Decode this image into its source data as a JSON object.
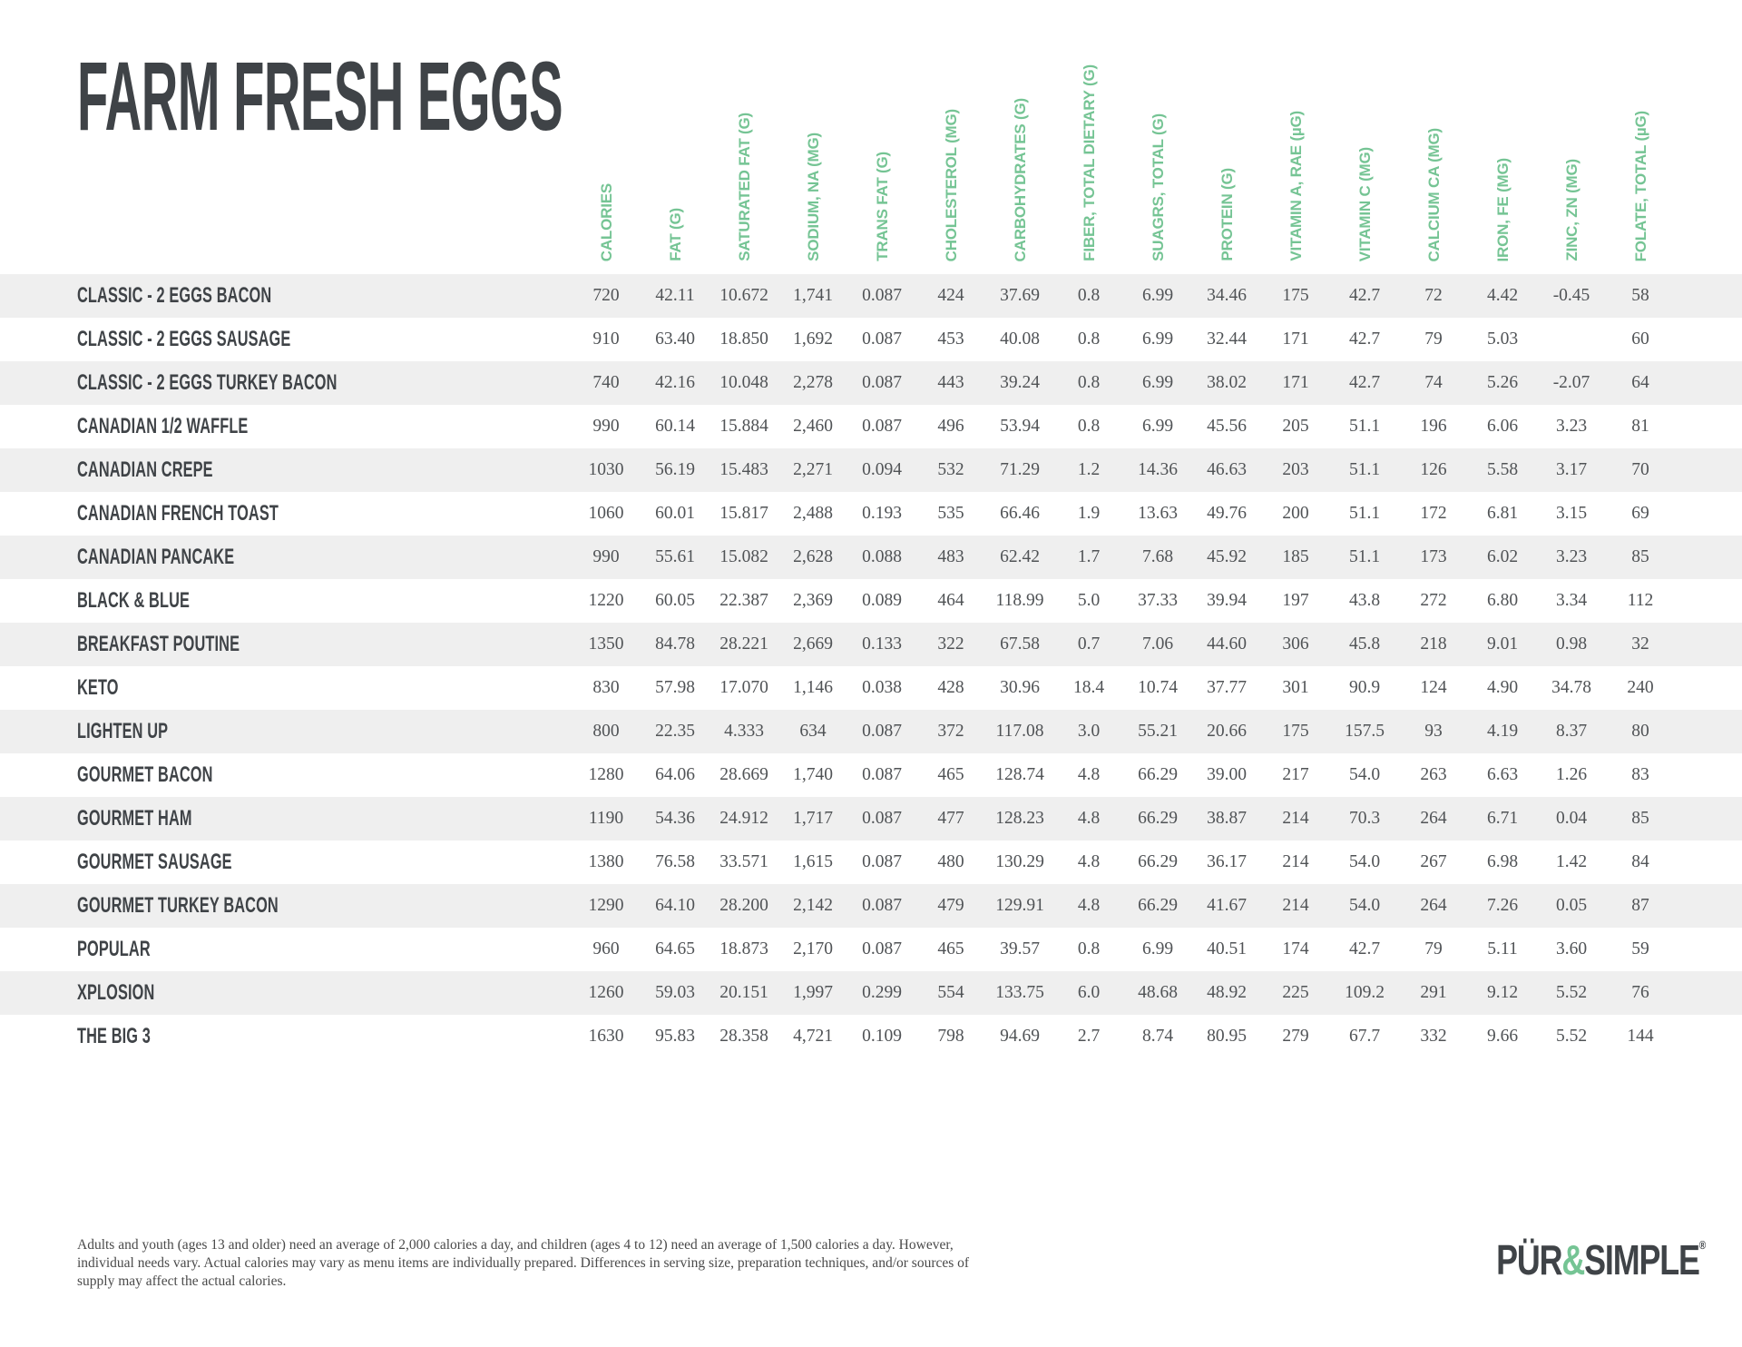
{
  "page": {
    "title": "FARM FRESH EGGS"
  },
  "table": {
    "columns": [
      "CALORIES",
      "FAT (G)",
      "SATURATED FAT (G)",
      "SODIUM, NA (MG)",
      "TRANS FAT (G)",
      "CHOLESTEROL (MG)",
      "CARBOHYDRATES (G)",
      "FIBER, TOTAL DIETARY (G)",
      "SUAGRS, TOTAL (G)",
      "PROTEIN (G)",
      "VITAMIN A, RAE (µG)",
      "VITAMIN C (MG)",
      "CALCIUM CA (MG)",
      "IRON, FE (MG)",
      "ZINC, ZN (MG)",
      "FOLATE, TOTAL (µG)"
    ],
    "rows": [
      {
        "name": "CLASSIC - 2 EGGS BACON",
        "values": [
          "720",
          "42.11",
          "10.672",
          "1,741",
          "0.087",
          "424",
          "37.69",
          "0.8",
          "6.99",
          "34.46",
          "175",
          "42.7",
          "72",
          "4.42",
          "-0.45",
          "58"
        ]
      },
      {
        "name": "CLASSIC - 2 EGGS SAUSAGE",
        "values": [
          "910",
          "63.40",
          "18.850",
          "1,692",
          "0.087",
          "453",
          "40.08",
          "0.8",
          "6.99",
          "32.44",
          "171",
          "42.7",
          "79",
          "5.03",
          "",
          "60"
        ]
      },
      {
        "name": "CLASSIC - 2 EGGS TURKEY BACON",
        "values": [
          "740",
          "42.16",
          "10.048",
          "2,278",
          "0.087",
          "443",
          "39.24",
          "0.8",
          "6.99",
          "38.02",
          "171",
          "42.7",
          "74",
          "5.26",
          "-2.07",
          "64"
        ]
      },
      {
        "name": "CANADIAN 1/2 WAFFLE",
        "values": [
          "990",
          "60.14",
          "15.884",
          "2,460",
          "0.087",
          "496",
          "53.94",
          "0.8",
          "6.99",
          "45.56",
          "205",
          "51.1",
          "196",
          "6.06",
          "3.23",
          "81"
        ]
      },
      {
        "name": "CANADIAN CREPE",
        "values": [
          "1030",
          "56.19",
          "15.483",
          "2,271",
          "0.094",
          "532",
          "71.29",
          "1.2",
          "14.36",
          "46.63",
          "203",
          "51.1",
          "126",
          "5.58",
          "3.17",
          "70"
        ]
      },
      {
        "name": "CANADIAN FRENCH TOAST",
        "values": [
          "1060",
          "60.01",
          "15.817",
          "2,488",
          "0.193",
          "535",
          "66.46",
          "1.9",
          "13.63",
          "49.76",
          "200",
          "51.1",
          "172",
          "6.81",
          "3.15",
          "69"
        ]
      },
      {
        "name": "CANADIAN PANCAKE",
        "values": [
          "990",
          "55.61",
          "15.082",
          "2,628",
          "0.088",
          "483",
          "62.42",
          "1.7",
          "7.68",
          "45.92",
          "185",
          "51.1",
          "173",
          "6.02",
          "3.23",
          "85"
        ]
      },
      {
        "name": "BLACK & BLUE",
        "values": [
          "1220",
          "60.05",
          "22.387",
          "2,369",
          "0.089",
          "464",
          "118.99",
          "5.0",
          "37.33",
          "39.94",
          "197",
          "43.8",
          "272",
          "6.80",
          "3.34",
          "112"
        ]
      },
      {
        "name": "BREAKFAST POUTINE",
        "values": [
          "1350",
          "84.78",
          "28.221",
          "2,669",
          "0.133",
          "322",
          "67.58",
          "0.7",
          "7.06",
          "44.60",
          "306",
          "45.8",
          "218",
          "9.01",
          "0.98",
          "32"
        ]
      },
      {
        "name": "KETO",
        "values": [
          "830",
          "57.98",
          "17.070",
          "1,146",
          "0.038",
          "428",
          "30.96",
          "18.4",
          "10.74",
          "37.77",
          "301",
          "90.9",
          "124",
          "4.90",
          "34.78",
          "240"
        ]
      },
      {
        "name": "LIGHTEN UP",
        "values": [
          "800",
          "22.35",
          "4.333",
          "634",
          "0.087",
          "372",
          "117.08",
          "3.0",
          "55.21",
          "20.66",
          "175",
          "157.5",
          "93",
          "4.19",
          "8.37",
          "80"
        ]
      },
      {
        "name": "GOURMET BACON",
        "values": [
          "1280",
          "64.06",
          "28.669",
          "1,740",
          "0.087",
          "465",
          "128.74",
          "4.8",
          "66.29",
          "39.00",
          "217",
          "54.0",
          "263",
          "6.63",
          "1.26",
          "83"
        ]
      },
      {
        "name": "GOURMET HAM",
        "values": [
          "1190",
          "54.36",
          "24.912",
          "1,717",
          "0.087",
          "477",
          "128.23",
          "4.8",
          "66.29",
          "38.87",
          "214",
          "70.3",
          "264",
          "6.71",
          "0.04",
          "85"
        ]
      },
      {
        "name": "GOURMET SAUSAGE",
        "values": [
          "1380",
          "76.58",
          "33.571",
          "1,615",
          "0.087",
          "480",
          "130.29",
          "4.8",
          "66.29",
          "36.17",
          "214",
          "54.0",
          "267",
          "6.98",
          "1.42",
          "84"
        ]
      },
      {
        "name": "GOURMET TURKEY BACON",
        "values": [
          "1290",
          "64.10",
          "28.200",
          "2,142",
          "0.087",
          "479",
          "129.91",
          "4.8",
          "66.29",
          "41.67",
          "214",
          "54.0",
          "264",
          "7.26",
          "0.05",
          "87"
        ]
      },
      {
        "name": "POPULAR",
        "values": [
          "960",
          "64.65",
          "18.873",
          "2,170",
          "0.087",
          "465",
          "39.57",
          "0.8",
          "6.99",
          "40.51",
          "174",
          "42.7",
          "79",
          "5.11",
          "3.60",
          "59"
        ]
      },
      {
        "name": "XPLOSION",
        "values": [
          "1260",
          "59.03",
          "20.151",
          "1,997",
          "0.299",
          "554",
          "133.75",
          "6.0",
          "48.68",
          "48.92",
          "225",
          "109.2",
          "291",
          "9.12",
          "5.52",
          "76"
        ]
      },
      {
        "name": "THE BIG 3",
        "values": [
          "1630",
          "95.83",
          "28.358",
          "4,721",
          "0.109",
          "798",
          "94.69",
          "2.7",
          "8.74",
          "80.95",
          "279",
          "67.7",
          "332",
          "9.66",
          "5.52",
          "144"
        ]
      }
    ]
  },
  "footnote": "Adults and youth (ages 13 and older) need an average of 2,000 calories a day, and children (ages 4 to 12) need an average of 1,500 calories a day. However, individual needs vary. Actual calories may vary as menu items are individually prepared. Differences in serving size, preparation techniques, and/or sources of supply may affect the actual calories.",
  "logo": {
    "pur": "PÜR",
    "amp": "&",
    "simple": "SIMPLE",
    "reg": "®"
  },
  "colors": {
    "accent_green": "#75c494",
    "row_stripe": "#efefef",
    "heading_dark": "#3f4347",
    "value_text": "#505356"
  }
}
